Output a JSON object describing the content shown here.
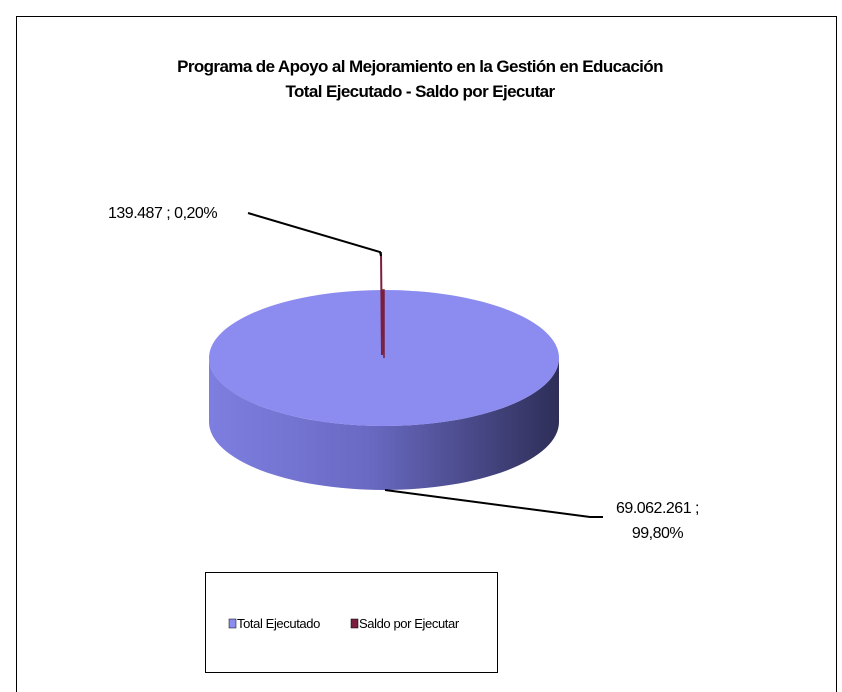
{
  "chart_data": {
    "type": "pie3d",
    "title": [
      "Programa de Apoyo al Mejoramiento en la Gestión en Educación",
      "Total  Ejecutado - Saldo por Ejecutar"
    ],
    "categories": [
      "Total Ejecutado",
      "Saldo por  Ejecutar"
    ],
    "values": [
      69062261,
      139487
    ],
    "value_labels": [
      "69.062.261 ; 99,80%",
      "139.487 ; 0,20%"
    ],
    "colors": [
      "#8c8cf0",
      "#7a1f3d"
    ],
    "legend": "bottom"
  }
}
